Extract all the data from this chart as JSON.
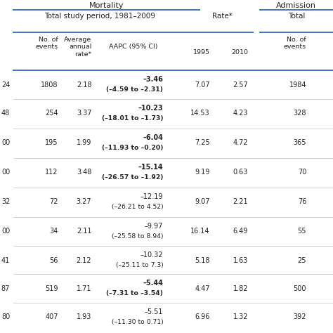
{
  "rows": [
    {
      "col0": "24",
      "no_events": "1808",
      "avg_rate": "2.18",
      "aapc": "–3.46",
      "ci": "(–4.59 to –2.31)",
      "bold_aapc": true,
      "rate1995": "7.07",
      "rate2010": "2.57",
      "no_events_adm": "1984"
    },
    {
      "col0": "48",
      "no_events": "254",
      "avg_rate": "3.37",
      "aapc": "–10.23",
      "ci": "(–18.01 to –1.73)",
      "bold_aapc": true,
      "rate1995": "14.53",
      "rate2010": "4.23",
      "no_events_adm": "328"
    },
    {
      "col0": "00",
      "no_events": "195",
      "avg_rate": "1.99",
      "aapc": "–6.04",
      "ci": "(–11.93 to –0.20)",
      "bold_aapc": true,
      "rate1995": "7.25",
      "rate2010": "4.72",
      "no_events_adm": "365"
    },
    {
      "col0": "00",
      "no_events": "112",
      "avg_rate": "3.48",
      "aapc": "–15.14",
      "ci": "(–26.57 to –1.92)",
      "bold_aapc": true,
      "rate1995": "9.19",
      "rate2010": "0.63",
      "no_events_adm": "70"
    },
    {
      "col0": "32",
      "no_events": "72",
      "avg_rate": "3.27",
      "aapc": "–12.19",
      "ci": "(–26.21 to 4.52)",
      "bold_aapc": false,
      "rate1995": "9.07",
      "rate2010": "2.21",
      "no_events_adm": "76"
    },
    {
      "col0": "00",
      "no_events": "34",
      "avg_rate": "2.11",
      "aapc": "–9.97",
      "ci": "(–25.58 to 8.94)",
      "bold_aapc": false,
      "rate1995": "16.14",
      "rate2010": "6.49",
      "no_events_adm": "55"
    },
    {
      "col0": "41",
      "no_events": "56",
      "avg_rate": "2.12",
      "aapc": "–10.32",
      "ci": "(–25.11 to 7.3)",
      "bold_aapc": false,
      "rate1995": "5.18",
      "rate2010": "1.63",
      "no_events_adm": "25"
    },
    {
      "col0": "87",
      "no_events": "519",
      "avg_rate": "1.71",
      "aapc": "–5.44",
      "ci": "(–7.31 to –3.54)",
      "bold_aapc": true,
      "rate1995": "4.47",
      "rate2010": "1.82",
      "no_events_adm": "500"
    },
    {
      "col0": "80",
      "no_events": "407",
      "avg_rate": "1.93",
      "aapc": "–5.51",
      "ci": "(–11.30 to 0.71)",
      "bold_aapc": false,
      "rate1995": "6.96",
      "rate2010": "1.32",
      "no_events_adm": "392"
    }
  ],
  "bg_color": "#ffffff",
  "text_color": "#222222",
  "line_color": "#4472c4",
  "gray_line_color": "#cccccc",
  "header1_mortality": "Mortality",
  "header1_admission": "Admission",
  "header2_period": "Total study period, 1981–2009",
  "header2_rate": "Rate*",
  "header2_total": "Total",
  "col_no_events": "No. of\nevents",
  "col_avg_rate": "Average\nannual\nrate*",
  "col_aapc": "AAPC (95% CI)",
  "col_1995": "1995",
  "col_2010": "2010",
  "col_no_events_adm": "No. of\nevents"
}
